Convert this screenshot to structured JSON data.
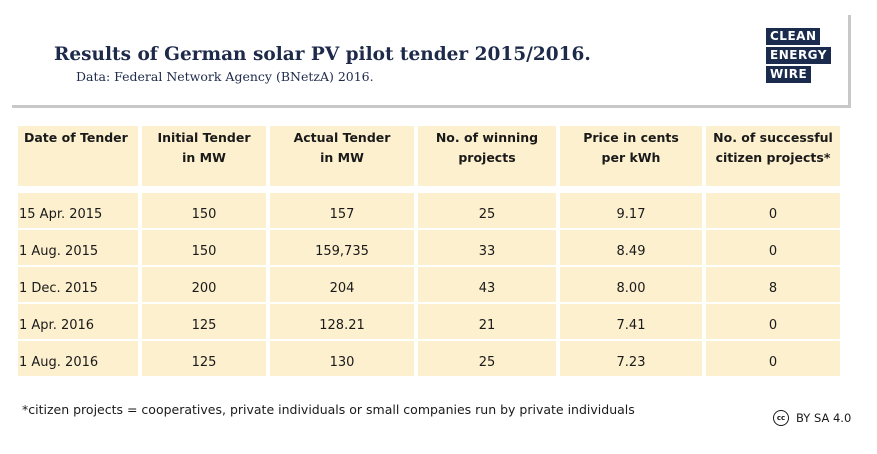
{
  "header": {
    "title": "Results of German solar PV pilot tender 2015/2016.",
    "subtitle": "Data: Federal Network Agency (BNetzA) 2016."
  },
  "logo": {
    "lines": [
      "CLEAN",
      "ENERGY",
      "WIRE"
    ],
    "color": "#1b2b4d"
  },
  "chart_data": {
    "type": "table",
    "title": "Results of German solar PV pilot tender 2015/2016.",
    "subtitle": "Data: Federal Network Agency (BNetzA) 2016.",
    "columns": [
      [
        "Date of Tender"
      ],
      [
        "Initial Tender",
        "in MW"
      ],
      [
        "Actual Tender",
        "in MW"
      ],
      [
        "No. of winning",
        "projects"
      ],
      [
        "Price in cents",
        "per kWh"
      ],
      [
        "No. of successful",
        "citizen projects*"
      ]
    ],
    "rows": [
      [
        "15 Apr. 2015",
        "150",
        "157",
        "25",
        "9.17",
        "0"
      ],
      [
        "1 Aug. 2015",
        "150",
        "159,735",
        "33",
        "8.49",
        "0"
      ],
      [
        "1 Dec. 2015",
        "200",
        "204",
        "43",
        "8.00",
        "8"
      ],
      [
        "1 Apr. 2016",
        "125",
        "128.21",
        "21",
        "7.41",
        "0"
      ],
      [
        "1 Aug. 2016",
        "125",
        "130",
        "25",
        "7.23",
        "0"
      ]
    ],
    "cell_background": "#fdf0ce"
  },
  "footnote": "*citizen projects = cooperatives, private individuals or small companies run by private individuals",
  "license": {
    "icon": "cc-icon",
    "icon_text": "cc",
    "text": "BY SA 4.0"
  }
}
